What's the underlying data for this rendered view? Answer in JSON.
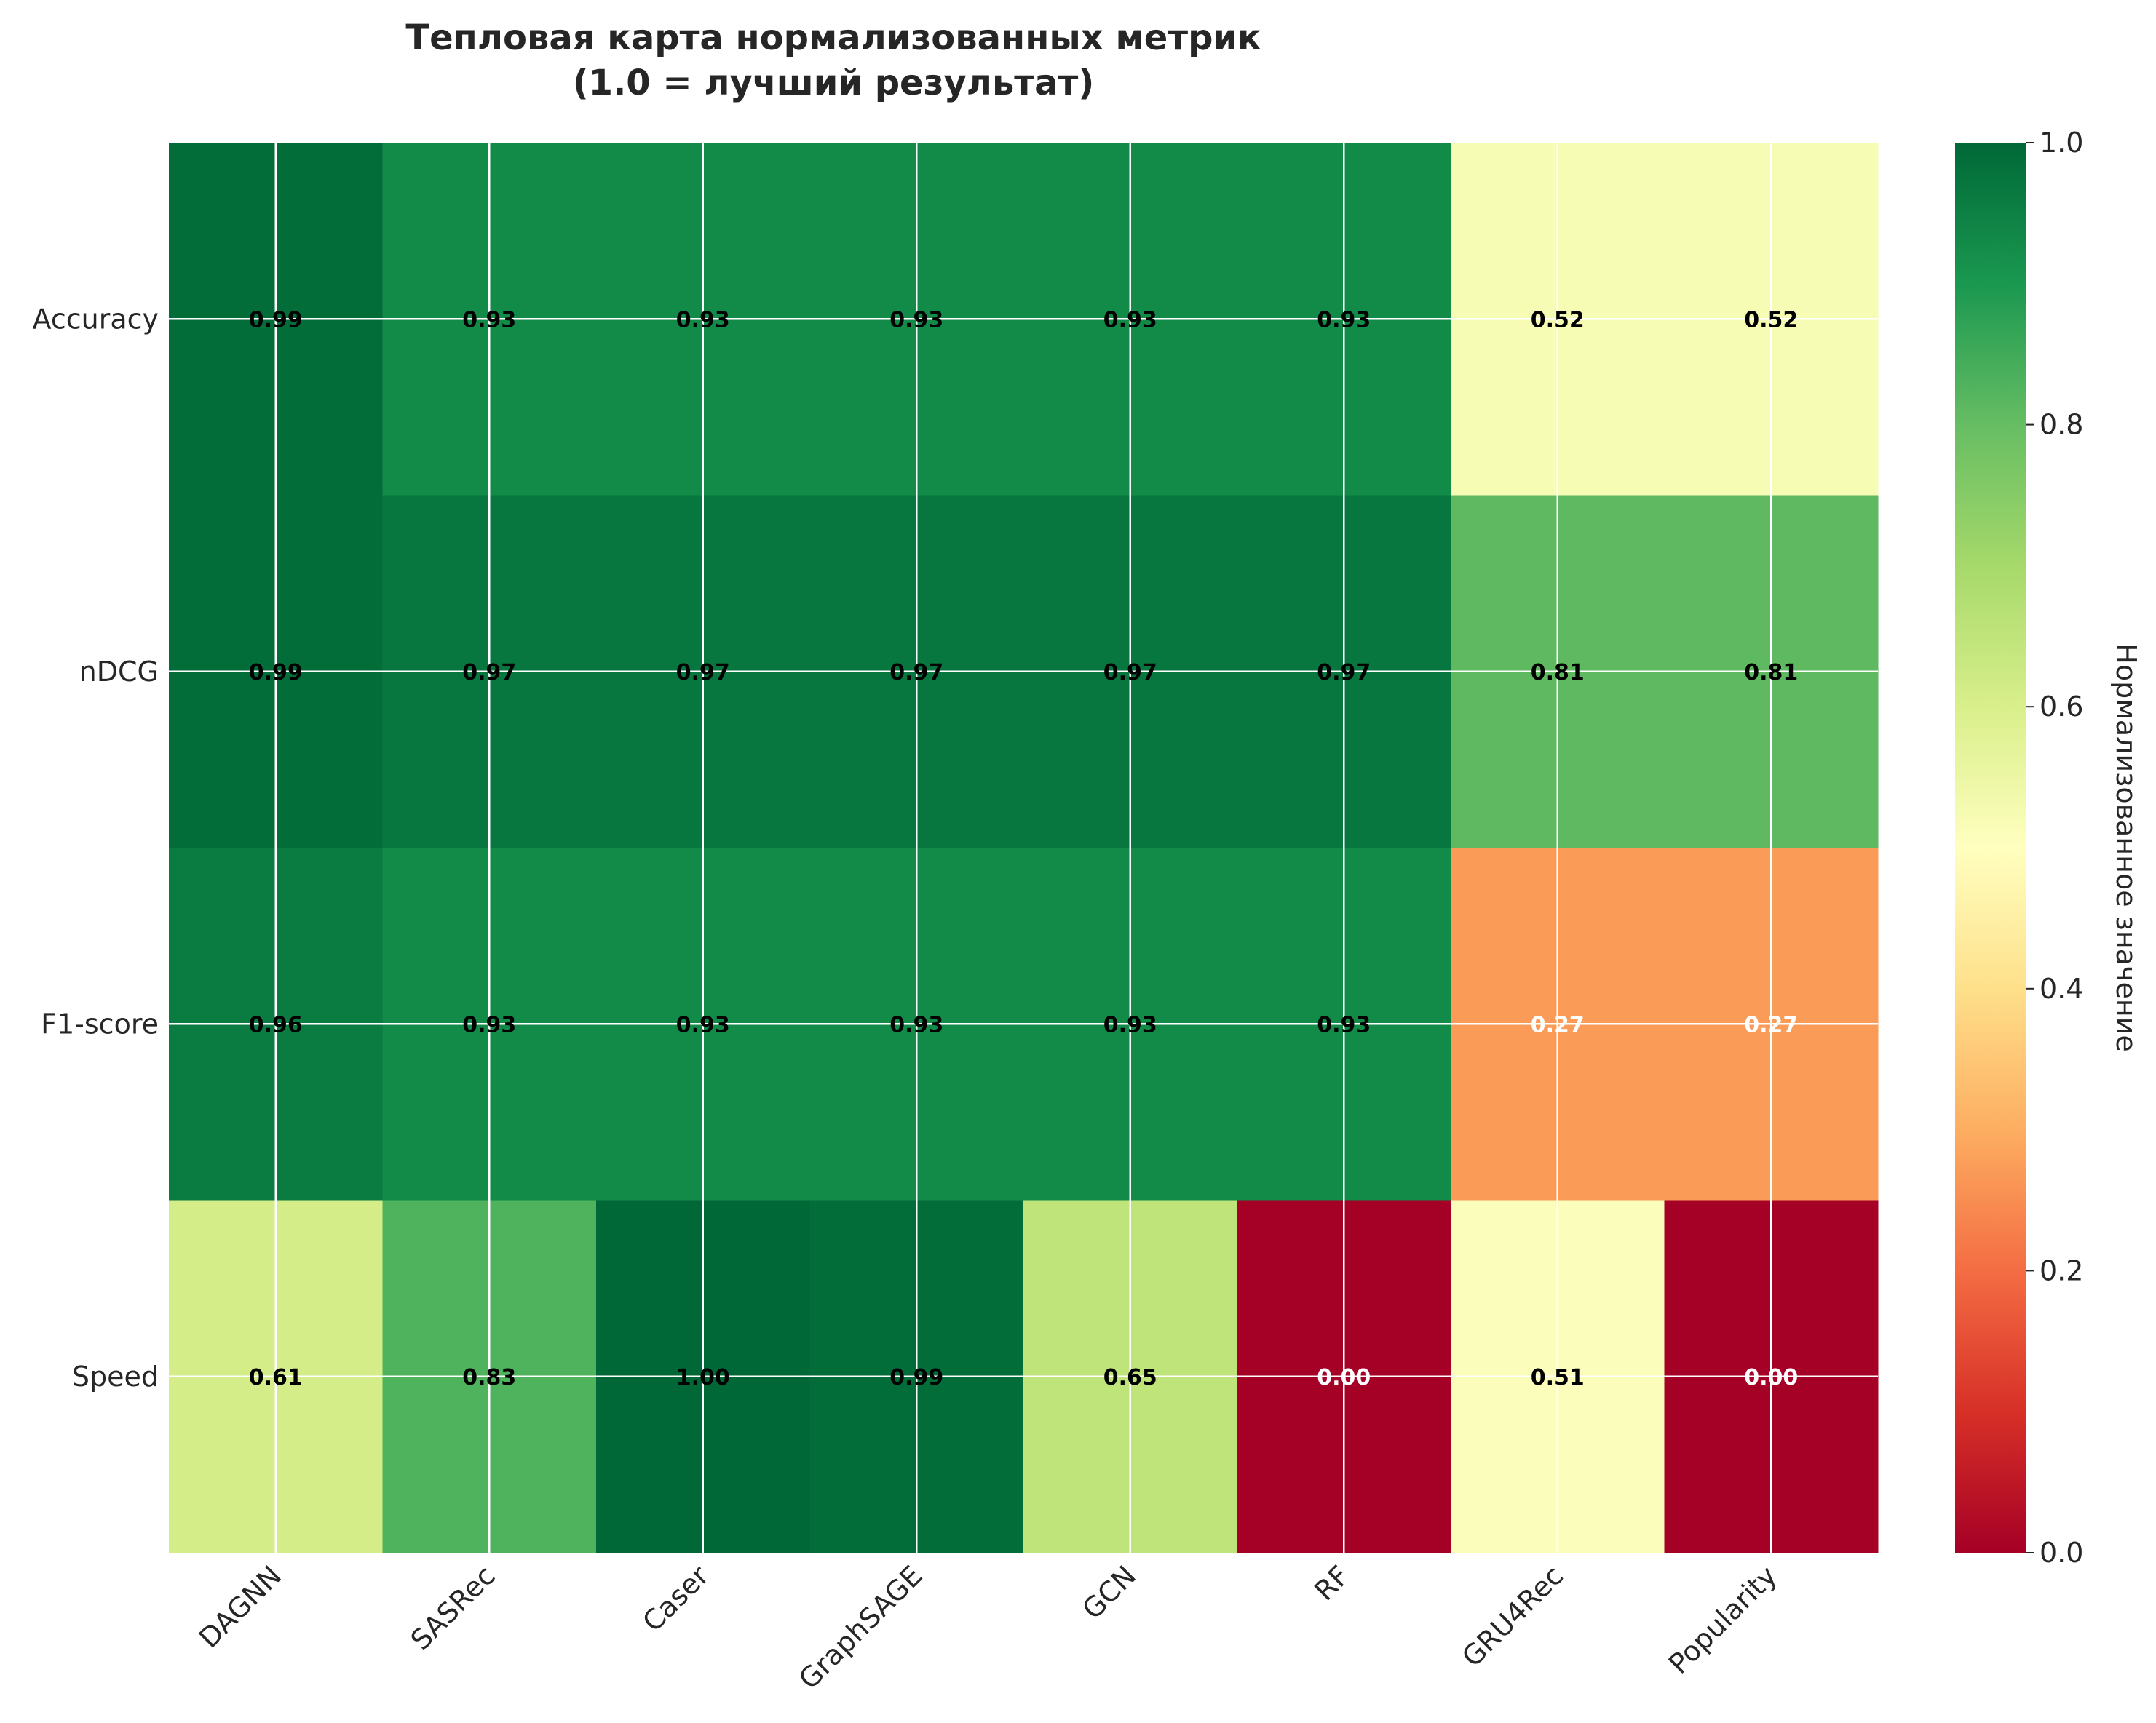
{
  "chart_data": {
    "type": "heatmap",
    "title": [
      "Тепловая карта нормализованных метрик",
      "(1.0 = лучший результат)"
    ],
    "rows": [
      "Accuracy",
      "nDCG",
      "F1-score",
      "Speed"
    ],
    "columns": [
      "DAGNN",
      "SASRec",
      "Caser",
      "GraphSAGE",
      "GCN",
      "RF",
      "GRU4Rec",
      "Popularity"
    ],
    "values": [
      [
        0.99,
        0.93,
        0.93,
        0.93,
        0.93,
        0.93,
        0.52,
        0.52
      ],
      [
        0.99,
        0.97,
        0.97,
        0.97,
        0.97,
        0.97,
        0.81,
        0.81
      ],
      [
        0.96,
        0.93,
        0.93,
        0.93,
        0.93,
        0.93,
        0.27,
        0.27
      ],
      [
        0.61,
        0.83,
        1.0,
        0.99,
        0.65,
        0.0,
        0.51,
        0.0
      ]
    ],
    "value_format": "0.00",
    "colormap": "RdYlGn",
    "colorbar": {
      "label": "Нормализованное значение",
      "range": [
        0.0,
        1.0
      ],
      "ticks": [
        "0.0",
        "0.2",
        "0.4",
        "0.6",
        "0.8",
        "1.0"
      ]
    },
    "grid": true
  },
  "colors": {
    "text_dark": "#000000",
    "text_light": "#ffffff",
    "axis_text": "#262626"
  }
}
